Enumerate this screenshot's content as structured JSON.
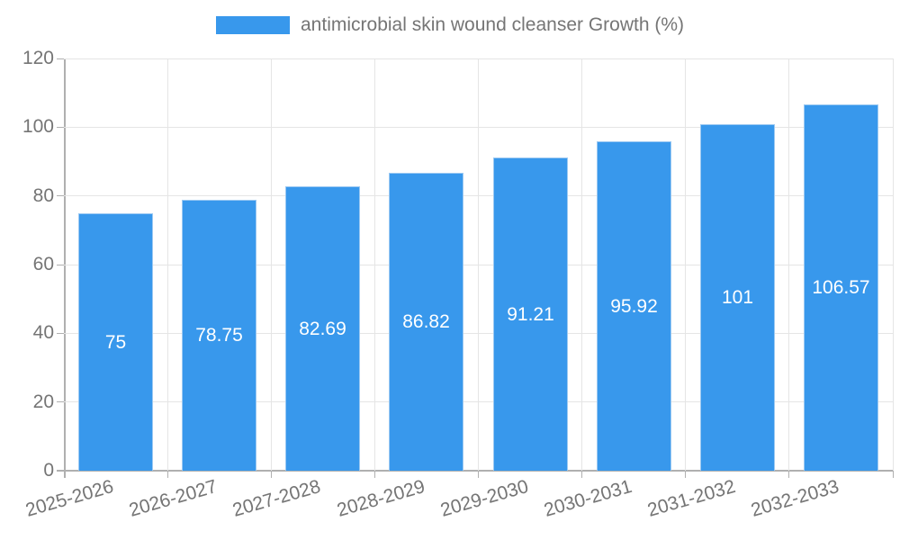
{
  "legend": {
    "label": "antimicrobial skin wound cleanser Growth (%)"
  },
  "chart_data": {
    "type": "bar",
    "title": "antimicrobial skin wound cleanser Growth (%)",
    "categories": [
      "2025-2026",
      "2026-2027",
      "2027-2028",
      "2028-2029",
      "2029-2030",
      "2030-2031",
      "2031-2032",
      "2032-2033"
    ],
    "values": [
      75,
      78.75,
      82.69,
      86.82,
      91.21,
      95.92,
      101,
      106.57
    ],
    "value_labels": [
      "75",
      "78.75",
      "82.69",
      "86.82",
      "91.21",
      "95.92",
      "101",
      "106.57"
    ],
    "xlabel": "",
    "ylabel": "",
    "ylim": [
      0,
      120
    ],
    "yticks": [
      0,
      20,
      40,
      60,
      80,
      100,
      120
    ],
    "grid": "on",
    "legend_position": "top-center",
    "colors": {
      "bar_fill": "#3898ec",
      "bar_border": "#9cc9f2",
      "bar_label": "#ffffff",
      "axis_line": "#b0b0b0",
      "grid_line": "#e5e5e5",
      "text": "#757575"
    }
  }
}
